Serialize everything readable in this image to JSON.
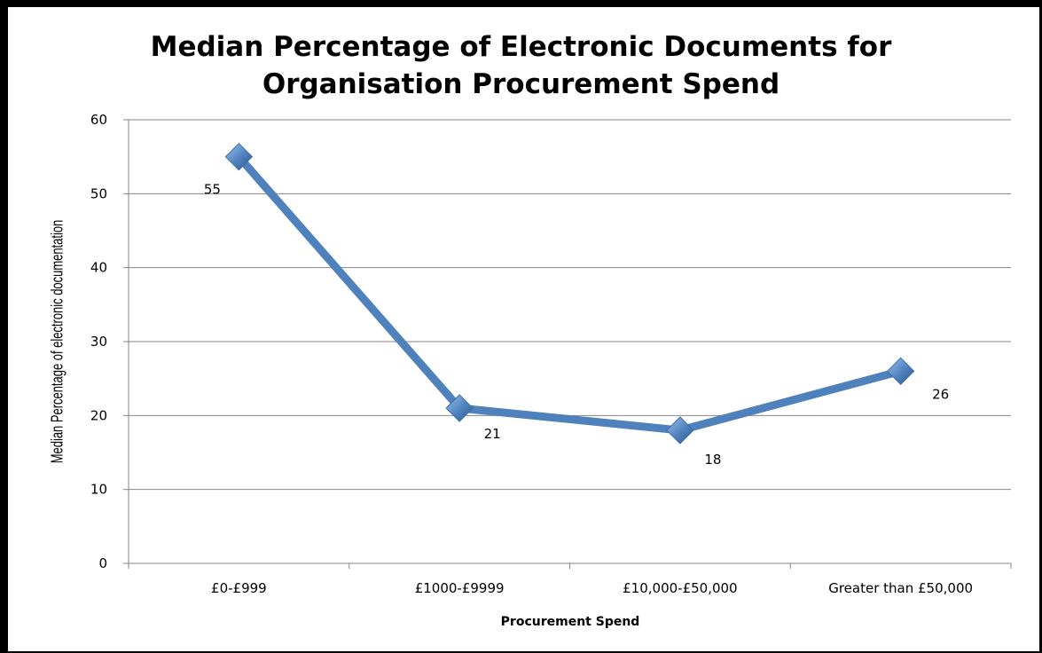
{
  "chart_data": {
    "type": "line",
    "title_line1": "Median Percentage of Electronic Documents for",
    "title_line2": "Organisation Procurement Spend",
    "xlabel": "Procurement Spend",
    "ylabel": "Median Percentage of electronic documentation",
    "categories": [
      "£0-£999",
      "£1000-£9999",
      "£10,000-£50,000",
      "Greater than £50,000"
    ],
    "values": [
      55,
      21,
      18,
      26
    ],
    "data_labels": [
      "55",
      "21",
      "18",
      "26"
    ],
    "ylim": [
      0,
      60
    ],
    "yticks": [
      0,
      10,
      20,
      30,
      40,
      50,
      60
    ],
    "grid": true,
    "legend": "none",
    "colors": {
      "line": "#4f81bd",
      "marker": "#4f81bd",
      "grid": "#868686"
    }
  }
}
